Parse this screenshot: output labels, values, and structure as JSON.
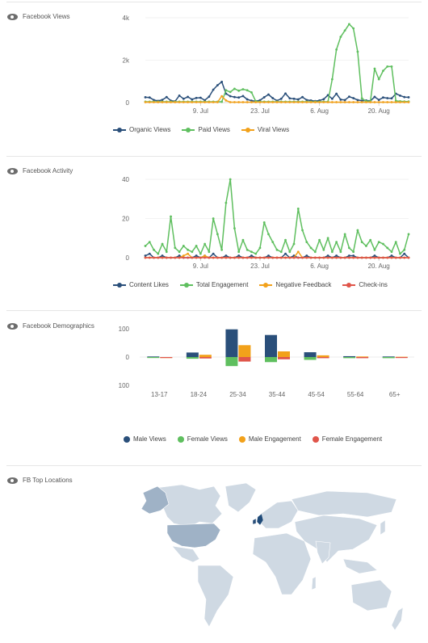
{
  "colors": {
    "organic": "#2a4f7a",
    "paid": "#5fbf5f",
    "viral": "#f2a11a",
    "content": "#2a4f7a",
    "engagement": "#5fbf5f",
    "negative": "#f2a11a",
    "checkins": "#e0554a",
    "male_views": "#2a4f7a",
    "female_views": "#5fbf5f",
    "male_eng": "#f2a11a",
    "female_eng": "#e0554a",
    "map_land": "#cfd9e3",
    "map_dark": "#9fb2c6",
    "map_uk": "#1f4a78"
  },
  "sections": {
    "views_title": "Facebook Views",
    "activity_title": "Facebook Activity",
    "demo_title": "Facebook Demographics",
    "map_title": "FB Top Locations"
  },
  "views_legend": [
    "Organic Views",
    "Paid Views",
    "Viral Views"
  ],
  "activity_legend": [
    "Content Likes",
    "Total Engagement",
    "Negative Feedback",
    "Check-ins"
  ],
  "demo_legend": [
    "Male Views",
    "Female Views",
    "Male Engagement",
    "Female Engagement"
  ],
  "chart_data": [
    {
      "type": "line",
      "ylim": [
        0,
        4000
      ],
      "yticks": [
        {
          "v": 0,
          "label": "0"
        },
        {
          "v": 2000,
          "label": "2k"
        },
        {
          "v": 4000,
          "label": "4k"
        }
      ],
      "xticks": [
        {
          "i": 13,
          "label": "9. Jul"
        },
        {
          "i": 27,
          "label": "23. Jul"
        },
        {
          "i": 41,
          "label": "6. Aug"
        },
        {
          "i": 55,
          "label": "20. Aug"
        }
      ],
      "series": [
        {
          "name": "Organic Views",
          "values": [
            250,
            240,
            120,
            80,
            130,
            260,
            90,
            60,
            330,
            180,
            270,
            150,
            220,
            230,
            110,
            280,
            610,
            820,
            980,
            420,
            300,
            260,
            240,
            310,
            150,
            90,
            70,
            110,
            250,
            380,
            210,
            90,
            180,
            430,
            200,
            180,
            150,
            260,
            120,
            100,
            70,
            100,
            160,
            350,
            180,
            420,
            140,
            120,
            280,
            210,
            120,
            90,
            100,
            80,
            270,
            130,
            240,
            210,
            200,
            420,
            330,
            260,
            250
          ]
        },
        {
          "name": "Paid Views",
          "values": [
            40,
            40,
            40,
            40,
            40,
            40,
            40,
            40,
            40,
            40,
            40,
            40,
            40,
            40,
            40,
            40,
            40,
            40,
            40,
            580,
            500,
            650,
            560,
            630,
            580,
            480,
            60,
            40,
            40,
            40,
            40,
            40,
            40,
            40,
            40,
            40,
            40,
            40,
            40,
            40,
            40,
            40,
            40,
            40,
            1100,
            2500,
            3100,
            3400,
            3700,
            3500,
            2400,
            200,
            60,
            60,
            1600,
            1100,
            1500,
            1700,
            1700,
            80,
            60,
            50,
            50
          ]
        },
        {
          "name": "Viral Views",
          "values": [
            20,
            20,
            20,
            20,
            20,
            20,
            20,
            20,
            20,
            20,
            20,
            20,
            20,
            20,
            20,
            20,
            20,
            20,
            300,
            100,
            20,
            20,
            20,
            20,
            20,
            20,
            20,
            20,
            20,
            20,
            20,
            20,
            20,
            20,
            20,
            20,
            20,
            20,
            20,
            20,
            20,
            20,
            20,
            20,
            20,
            20,
            20,
            20,
            20,
            20,
            20,
            20,
            20,
            20,
            20,
            20,
            20,
            20,
            20,
            20,
            20,
            20,
            20
          ]
        }
      ]
    },
    {
      "type": "line",
      "ylim": [
        0,
        40
      ],
      "yticks": [
        {
          "v": 0,
          "label": "0"
        },
        {
          "v": 20,
          "label": "20"
        },
        {
          "v": 40,
          "label": "40"
        }
      ],
      "xticks": [
        {
          "i": 13,
          "label": "9. Jul"
        },
        {
          "i": 27,
          "label": "23. Jul"
        },
        {
          "i": 41,
          "label": "6. Aug"
        },
        {
          "i": 55,
          "label": "20. Aug"
        }
      ],
      "series": [
        {
          "name": "Content Likes",
          "values": [
            1,
            2,
            0,
            0,
            1,
            0,
            0,
            0,
            1,
            0,
            0,
            0,
            1,
            0,
            1,
            0,
            2,
            0,
            0,
            1,
            0,
            0,
            1,
            0,
            0,
            1,
            0,
            0,
            0,
            1,
            0,
            0,
            0,
            2,
            0,
            1,
            0,
            0,
            1,
            0,
            0,
            0,
            0,
            1,
            0,
            1,
            0,
            0,
            1,
            1,
            0,
            0,
            0,
            0,
            1,
            0,
            0,
            0,
            1,
            0,
            0,
            2,
            0
          ]
        },
        {
          "name": "Total Engagement",
          "values": [
            6,
            8,
            4,
            2,
            7,
            3,
            21,
            5,
            3,
            6,
            4,
            3,
            6,
            2,
            7,
            3,
            20,
            12,
            4,
            28,
            40,
            15,
            3,
            9,
            4,
            3,
            2,
            5,
            18,
            12,
            8,
            4,
            3,
            9,
            3,
            7,
            25,
            14,
            8,
            5,
            3,
            9,
            4,
            10,
            3,
            8,
            3,
            12,
            5,
            3,
            14,
            8,
            6,
            9,
            4,
            8,
            7,
            5,
            3,
            8,
            2,
            4,
            12
          ]
        },
        {
          "name": "Negative Feedback",
          "values": [
            0,
            0,
            0,
            0,
            0,
            0,
            0,
            0,
            0,
            1,
            2,
            0,
            0,
            0,
            1,
            0,
            0,
            0,
            0,
            0,
            0,
            0,
            0,
            0,
            0,
            0,
            0,
            0,
            0,
            0,
            0,
            0,
            0,
            0,
            0,
            0,
            3,
            0,
            0,
            0,
            0,
            0,
            0,
            0,
            0,
            0,
            0,
            0,
            0,
            0,
            0,
            0,
            0,
            0,
            0,
            0,
            0,
            0,
            0,
            0,
            0,
            0,
            0
          ]
        },
        {
          "name": "Check-ins",
          "values": [
            0,
            0,
            0,
            0,
            0,
            0,
            0,
            0,
            0,
            0,
            0,
            0,
            0,
            0,
            0,
            0,
            0,
            0,
            0,
            0,
            0,
            0,
            0,
            0,
            0,
            0,
            0,
            0,
            0,
            0,
            0,
            0,
            0,
            0,
            0,
            0,
            0,
            0,
            0,
            0,
            0,
            0,
            0,
            0,
            0,
            0,
            0,
            0,
            0,
            0,
            0,
            0,
            0,
            0,
            0,
            0,
            0,
            0,
            0,
            0,
            0,
            0,
            0
          ]
        }
      ]
    },
    {
      "type": "bar",
      "categories": [
        "13-17",
        "18-24",
        "25-34",
        "35-44",
        "45-54",
        "55-64",
        "65+"
      ],
      "ylim": [
        -100,
        100
      ],
      "yticks": [
        {
          "v": 100,
          "label": "100"
        },
        {
          "v": 0,
          "label": "0"
        },
        {
          "v": -100,
          "label": "100"
        }
      ],
      "series": [
        {
          "name": "Male Views",
          "values": [
            2,
            16,
            98,
            78,
            17,
            3,
            2
          ]
        },
        {
          "name": "Female Views",
          "values": [
            -3,
            -6,
            -32,
            -18,
            -10,
            -4,
            -4
          ]
        },
        {
          "name": "Male Engagement",
          "values": [
            0,
            8,
            42,
            20,
            6,
            2,
            1
          ]
        },
        {
          "name": "Female Engagement",
          "values": [
            0,
            -5,
            -16,
            -8,
            -4,
            -4,
            -2
          ]
        }
      ]
    }
  ]
}
